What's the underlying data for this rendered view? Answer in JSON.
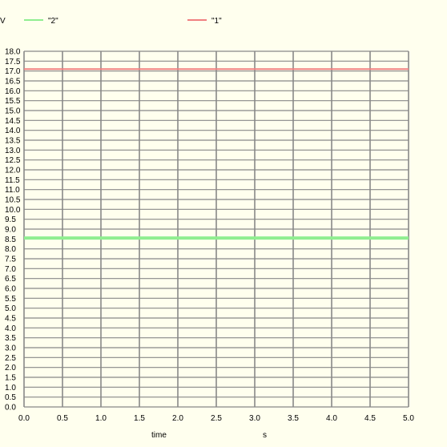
{
  "chart_data": {
    "type": "line",
    "ylabel": "V",
    "xlabel": "time",
    "xunit": "s",
    "xlim": [
      0,
      5
    ],
    "ylim": [
      0,
      18
    ],
    "x_step": 0.5,
    "y_step": 0.5,
    "x_ticks": [
      "0.0",
      "0.5",
      "1.0",
      "1.5",
      "2.0",
      "2.5",
      "3.0",
      "3.5",
      "4.0",
      "4.5",
      "5.0"
    ],
    "y_ticks": [
      "0.0",
      "0.5",
      "1.0",
      "1.5",
      "2.0",
      "2.5",
      "3.0",
      "3.5",
      "4.0",
      "4.5",
      "5.0",
      "5.5",
      "6.0",
      "6.5",
      "7.0",
      "7.5",
      "8.0",
      "8.5",
      "9.0",
      "9.5",
      "10.0",
      "10.5",
      "11.0",
      "11.5",
      "12.0",
      "12.5",
      "13.0",
      "13.5",
      "14.0",
      "14.5",
      "15.0",
      "15.5",
      "16.0",
      "16.5",
      "17.0",
      "17.5",
      "18.0"
    ],
    "grid": true,
    "legend_position": "top",
    "series": [
      {
        "name": "\"2\"",
        "color": "#90ee90",
        "x": [
          0,
          5
        ],
        "y": [
          8.55,
          8.55
        ]
      },
      {
        "name": "\"1\"",
        "color": "#f08080",
        "x": [
          0,
          5
        ],
        "y": [
          17.1,
          17.1
        ]
      }
    ]
  }
}
